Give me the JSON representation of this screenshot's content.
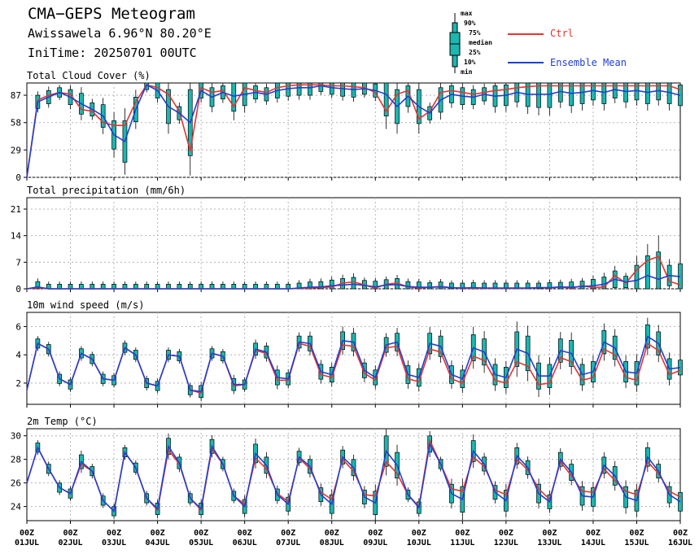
{
  "header": {
    "title": "CMA−GEPS Meteogram",
    "location": "Awissawela 6.96°N 80.20°E",
    "init_time": "IniTime: 20250701 00UTC"
  },
  "legend": {
    "ctrl_label": "Ctrl",
    "mean_label": "Ensemble Mean",
    "box_labels": [
      "max",
      "90%",
      "75%",
      "median",
      "25%",
      "10%",
      "min"
    ],
    "colors": {
      "ctrl": "#e8322f",
      "mean": "#1f3fd6",
      "box": "#1bb7b0"
    }
  },
  "x_axis": {
    "ticks": [
      {
        "top": "00Z",
        "bottom": "01JUL"
      },
      {
        "top": "00Z",
        "bottom": "02JUL"
      },
      {
        "top": "00Z",
        "bottom": "03JUL"
      },
      {
        "top": "00Z",
        "bottom": "04JUL"
      },
      {
        "top": "00Z",
        "bottom": "05JUL"
      },
      {
        "top": "00Z",
        "bottom": "06JUL"
      },
      {
        "top": "00Z",
        "bottom": "07JUL"
      },
      {
        "top": "00Z",
        "bottom": "08JUL"
      },
      {
        "top": "00Z",
        "bottom": "09JUL"
      },
      {
        "top": "00Z",
        "bottom": "10JUL"
      },
      {
        "top": "00Z",
        "bottom": "11JUL"
      },
      {
        "top": "00Z",
        "bottom": "12JUL"
      },
      {
        "top": "00Z",
        "bottom": "13JUL"
      },
      {
        "top": "00Z",
        "bottom": "14JUL"
      },
      {
        "top": "00Z",
        "bottom": "15JUL"
      },
      {
        "top": "00Z",
        "bottom": "16JUL"
      }
    ]
  },
  "chart_data": [
    {
      "type": "line",
      "title": "Total Cloud Cover (%)",
      "ylim": [
        0,
        100
      ],
      "yticks": [
        0,
        29,
        58,
        87
      ],
      "grid": true,
      "x_days": [
        0,
        0.25,
        0.5,
        0.75,
        1,
        1.25,
        1.5,
        1.75,
        2,
        2.25,
        2.5,
        2.75,
        3,
        3.25,
        3.5,
        3.75,
        4,
        4.25,
        4.5,
        4.75,
        5,
        5.25,
        5.5,
        5.75,
        6,
        6.25,
        6.5,
        6.75,
        7,
        7.25,
        7.5,
        7.75,
        8,
        8.25,
        8.5,
        8.75,
        9,
        9.25,
        9.5,
        9.75,
        10,
        10.25,
        10.5,
        10.75,
        11,
        11.25,
        11.5,
        11.75,
        12,
        12.25,
        12.5,
        12.75,
        13,
        13.25,
        13.5,
        13.75,
        14,
        14.25,
        14.5,
        14.75,
        15
      ],
      "series": [
        {
          "name": "Ctrl",
          "values": [
            0,
            82,
            87,
            90,
            88,
            72,
            70,
            58,
            55,
            55,
            80,
            98,
            95,
            88,
            70,
            28,
            95,
            90,
            92,
            75,
            95,
            92,
            90,
            95,
            97,
            98,
            98,
            98,
            97,
            97,
            96,
            95,
            90,
            70,
            88,
            92,
            62,
            70,
            90,
            92,
            90,
            88,
            90,
            92,
            93,
            95,
            96,
            97,
            97,
            97,
            97,
            97,
            97,
            97,
            97,
            97,
            97,
            97,
            97,
            97,
            93
          ]
        },
        {
          "name": "Ensemble Mean",
          "values": [
            0,
            80,
            85,
            90,
            85,
            78,
            72,
            65,
            45,
            38,
            72,
            98,
            92,
            75,
            68,
            58,
            92,
            85,
            90,
            86,
            88,
            90,
            88,
            92,
            94,
            95,
            95,
            97,
            95,
            94,
            93,
            94,
            92,
            88,
            75,
            86,
            75,
            68,
            82,
            88,
            86,
            85,
            88,
            86,
            87,
            90,
            88,
            88,
            88,
            91,
            89,
            90,
            92,
            90,
            93,
            91,
            92,
            90,
            92,
            90,
            87
          ]
        }
      ]
    },
    {
      "type": "line",
      "title": "Total precipitation (mm/6h)",
      "ylim": [
        0,
        24
      ],
      "yticks": [
        0,
        7,
        14,
        21
      ],
      "grid": true,
      "x_days": [
        0,
        0.25,
        0.5,
        0.75,
        1,
        1.25,
        1.5,
        1.75,
        2,
        2.25,
        2.5,
        2.75,
        3,
        3.25,
        3.5,
        3.75,
        4,
        4.25,
        4.5,
        4.75,
        5,
        5.25,
        5.5,
        5.75,
        6,
        6.25,
        6.5,
        6.75,
        7,
        7.25,
        7.5,
        7.75,
        8,
        8.25,
        8.5,
        8.75,
        9,
        9.25,
        9.5,
        9.75,
        10,
        10.25,
        10.5,
        10.75,
        11,
        11.25,
        11.5,
        11.75,
        12,
        12.25,
        12.5,
        12.75,
        13,
        13.25,
        13.5,
        13.75,
        14,
        14.25,
        14.5,
        14.75,
        15
      ],
      "series": [
        {
          "name": "Ctrl",
          "values": [
            0,
            0.3,
            0,
            0,
            0,
            0,
            0,
            0,
            0,
            0,
            0,
            0,
            0,
            0,
            0,
            0,
            0,
            0,
            0,
            0,
            0,
            0,
            0,
            0,
            0,
            0.1,
            0.2,
            0.3,
            0.5,
            1.5,
            1.8,
            1,
            0.2,
            1.2,
            1.5,
            0.5,
            0.2,
            0.4,
            0.6,
            0.3,
            0.1,
            0.2,
            0.1,
            0.1,
            0.1,
            0.1,
            0.1,
            0.3,
            0.2,
            0.5,
            0.2,
            0.8,
            0.3,
            0.5,
            3.5,
            1.5,
            5,
            7.5,
            8.5,
            2,
            1
          ]
        },
        {
          "name": "Ensemble Mean",
          "values": [
            0,
            0.5,
            0,
            0,
            0,
            0,
            0,
            0,
            0,
            0,
            0,
            0,
            0,
            0,
            0,
            0,
            0,
            0,
            0,
            0,
            0,
            0,
            0,
            0,
            0,
            0.2,
            0.4,
            0.5,
            0.8,
            1,
            1.2,
            0.9,
            0.5,
            1,
            1.1,
            0.6,
            0.4,
            0.4,
            0.5,
            0.3,
            0.2,
            0.3,
            0.2,
            0.2,
            0.2,
            0.2,
            0.2,
            0.3,
            0.3,
            0.5,
            0.4,
            0.6,
            0.8,
            1.2,
            2.5,
            1.8,
            2.2,
            3.5,
            2.5,
            3.5,
            3.2
          ]
        }
      ]
    },
    {
      "type": "line",
      "title": "10m wind speed (m/s)",
      "ylim": [
        0.5,
        7
      ],
      "yticks": [
        2,
        4,
        6
      ],
      "grid": true,
      "x_days": [
        0,
        0.25,
        0.5,
        0.75,
        1,
        1.25,
        1.5,
        1.75,
        2,
        2.25,
        2.5,
        2.75,
        3,
        3.25,
        3.5,
        3.75,
        4,
        4.25,
        4.5,
        4.75,
        5,
        5.25,
        5.5,
        5.75,
        6,
        6.25,
        6.5,
        6.75,
        7,
        7.25,
        7.5,
        7.75,
        8,
        8.25,
        8.5,
        8.75,
        9,
        9.25,
        9.5,
        9.75,
        10,
        10.25,
        10.5,
        10.75,
        11,
        11.25,
        11.5,
        11.75,
        12,
        12.25,
        12.5,
        12.75,
        13,
        13.25,
        13.5,
        13.75,
        14,
        14.25,
        14.5,
        14.75,
        15
      ],
      "series": [
        {
          "name": "Ctrl",
          "values": [
            1.5,
            4.8,
            4.4,
            2.3,
            1.9,
            4.1,
            3.7,
            2.3,
            2.2,
            4.5,
            4.0,
            2.0,
            1.8,
            4.0,
            3.9,
            1.5,
            1.3,
            4.1,
            3.9,
            1.8,
            1.9,
            4.3,
            4.1,
            2.2,
            2.2,
            4.8,
            4.6,
            2.6,
            2.4,
            4.7,
            4.6,
            2.7,
            2.2,
            4.5,
            4.6,
            2.3,
            2.1,
            4.4,
            4.2,
            2.3,
            2.0,
            3.9,
            3.6,
            2.2,
            2.0,
            3.5,
            3.2,
            1.9,
            2.0,
            3.8,
            3.5,
            2.2,
            2.4,
            4.4,
            4.0,
            2.4,
            2.2,
            4.8,
            4.3,
            2.6,
            2.9
          ]
        },
        {
          "name": "Ensemble Mean",
          "values": [
            1.5,
            4.8,
            4.4,
            2.3,
            1.9,
            4.1,
            3.7,
            2.3,
            2.2,
            4.5,
            4.0,
            2.0,
            1.8,
            4.0,
            3.9,
            1.5,
            1.4,
            4.1,
            3.9,
            1.9,
            1.9,
            4.4,
            4.2,
            2.4,
            2.3,
            4.9,
            4.8,
            2.8,
            2.6,
            5.0,
            4.9,
            2.9,
            2.4,
            4.7,
            4.9,
            2.6,
            2.4,
            4.8,
            4.6,
            2.6,
            2.3,
            4.5,
            4.2,
            2.6,
            2.4,
            4.4,
            4.1,
            2.5,
            2.5,
            4.3,
            4.1,
            2.6,
            2.8,
            4.9,
            4.5,
            2.8,
            2.7,
            5.3,
            4.8,
            3.0,
            3.1
          ]
        }
      ]
    },
    {
      "type": "line",
      "title": "2m Temp (°C)",
      "ylim": [
        22.8,
        30.6
      ],
      "yticks": [
        24,
        26,
        28,
        30
      ],
      "grid": true,
      "x_days": [
        0,
        0.25,
        0.5,
        0.75,
        1,
        1.25,
        1.5,
        1.75,
        2,
        2.25,
        2.5,
        2.75,
        3,
        3.25,
        3.5,
        3.75,
        4,
        4.25,
        4.5,
        4.75,
        5,
        5.25,
        5.5,
        5.75,
        6,
        6.25,
        6.5,
        6.75,
        7,
        7.25,
        7.5,
        7.75,
        8,
        8.25,
        8.5,
        8.75,
        9,
        9.25,
        9.5,
        9.75,
        10,
        10.25,
        10.5,
        10.75,
        11,
        11.25,
        11.5,
        11.75,
        12,
        12.25,
        12.5,
        12.75,
        13,
        13.25,
        13.5,
        13.75,
        14,
        14.25,
        14.5,
        14.75,
        15
      ],
      "series": [
        {
          "name": "Ctrl",
          "values": [
            26,
            29,
            27.2,
            25.6,
            25.1,
            27.6,
            27,
            24.5,
            23.6,
            28.6,
            27.3,
            24.7,
            23.7,
            28.8,
            27.6,
            24.7,
            23.7,
            28.9,
            27.6,
            24.9,
            24.2,
            28.1,
            27.2,
            25.1,
            24.4,
            28.1,
            27.2,
            25.2,
            24.6,
            28.0,
            27.0,
            25.0,
            24.9,
            27.8,
            26.8,
            25.0,
            24.0,
            29.6,
            27.6,
            25.5,
            25.3,
            28.2,
            27.4,
            25.4,
            25.0,
            28.0,
            27.1,
            25.5,
            24.6,
            27.8,
            26.6,
            25.3,
            25.2,
            27.2,
            26.2,
            25.3,
            25.0,
            27.8,
            26.8,
            25.3,
            24.8
          ]
        },
        {
          "name": "Ensemble Mean",
          "values": [
            26,
            29,
            27.2,
            25.6,
            25.1,
            27.8,
            27,
            24.5,
            23.6,
            28.6,
            27.3,
            24.7,
            23.8,
            29.1,
            27.7,
            24.7,
            23.8,
            29.1,
            27.6,
            24.9,
            24.0,
            28.5,
            27.5,
            25.0,
            24.2,
            28.2,
            27.4,
            25.0,
            24.2,
            28.2,
            27.3,
            24.8,
            24.3,
            28.7,
            27.5,
            25.0,
            23.9,
            29.3,
            27.6,
            25.1,
            24.6,
            28.7,
            27.6,
            25.2,
            24.5,
            28.3,
            27.3,
            25.1,
            24.4,
            28.0,
            26.9,
            24.9,
            24.8,
            27.5,
            26.6,
            24.8,
            24.5,
            28.2,
            27.0,
            25.0,
            24.4
          ]
        }
      ]
    }
  ]
}
